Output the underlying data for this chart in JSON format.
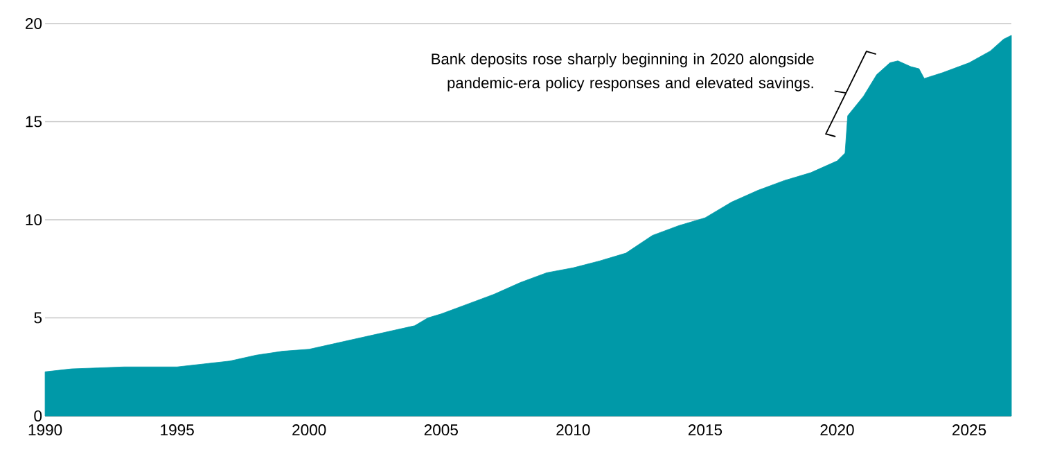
{
  "chart_data": {
    "type": "area",
    "xlim": [
      1990,
      2026.6
    ],
    "ylim": [
      0,
      20
    ],
    "xticks": [
      1990,
      1995,
      2000,
      2005,
      2010,
      2015,
      2020,
      2025
    ],
    "yticks": [
      0,
      5,
      10,
      15,
      20
    ],
    "grid": "y",
    "annotations": [
      "Bank deposits rose sharply beginning in 2020 alongside pandemic-era policy responses and elevated savings."
    ],
    "series": [
      {
        "color": "#0099a8",
        "x": [
          1990,
          1991,
          1992,
          1993,
          1994,
          1995,
          1996,
          1997,
          1998,
          1999,
          2000,
          2001,
          2002,
          2003,
          2004,
          2004.5,
          2005,
          2006,
          2007,
          2008,
          2009,
          2010,
          2011,
          2012,
          2013,
          2014,
          2015,
          2016,
          2017,
          2018,
          2019,
          2020,
          2020.3,
          2020.4,
          2021,
          2021.5,
          2022,
          2022.3,
          2022.8,
          2023.1,
          2023.3,
          2024,
          2025,
          2025.8,
          2026.3,
          2026.6
        ],
        "values": [
          2.25,
          2.4,
          2.45,
          2.5,
          2.5,
          2.5,
          2.65,
          2.8,
          3.1,
          3.3,
          3.4,
          3.7,
          4.0,
          4.3,
          4.6,
          5.0,
          5.2,
          5.7,
          6.2,
          6.8,
          7.3,
          7.55,
          7.9,
          8.3,
          9.2,
          9.7,
          10.1,
          10.9,
          11.5,
          12.0,
          12.4,
          13.0,
          13.4,
          15.3,
          16.3,
          17.4,
          18.0,
          18.1,
          17.8,
          17.7,
          17.2,
          17.5,
          18.0,
          18.6,
          19.2,
          19.4
        ]
      }
    ]
  }
}
